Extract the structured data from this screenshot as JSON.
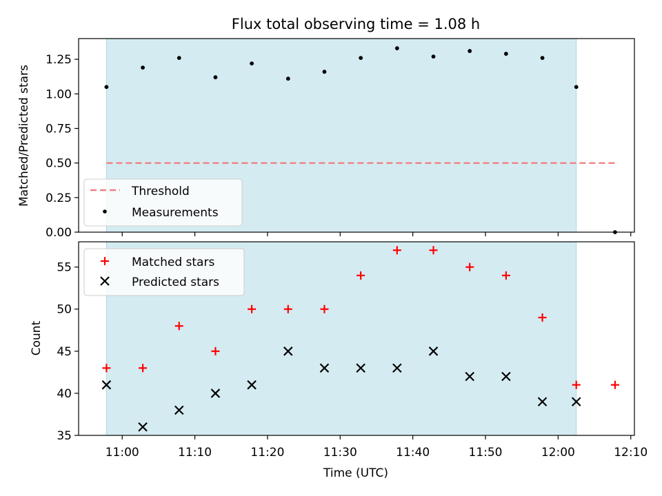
{
  "figure": {
    "title": "Flux total observing time = 1.08 h",
    "xlabel": "Time (UTC)"
  },
  "chart_data": [
    {
      "type": "scatter",
      "ylabel": "Matched/Predicted stars",
      "ylim": [
        0,
        1.4
      ],
      "yticks": [
        "0.00",
        "0.25",
        "0.50",
        "0.75",
        "1.00",
        "1.25"
      ],
      "shaded_interval": [
        "10:57:50",
        "12:02:30"
      ],
      "threshold": {
        "name": "Threshold",
        "value": 0.5,
        "x_range": [
          "10:57:50",
          "12:07:50"
        ],
        "color": "#f08080"
      },
      "legend": {
        "placement": "lower-left",
        "entries": [
          "Threshold",
          "Measurements"
        ]
      },
      "series": [
        {
          "name": "Measurements",
          "color": "#000000",
          "x": [
            "10:57:50",
            "11:02:50",
            "11:07:50",
            "11:12:50",
            "11:17:50",
            "11:22:50",
            "11:27:50",
            "11:32:50",
            "11:37:50",
            "11:42:50",
            "11:47:50",
            "11:52:50",
            "11:57:50",
            "12:02:30",
            "12:07:50"
          ],
          "y": [
            1.05,
            1.19,
            1.26,
            1.12,
            1.22,
            1.11,
            1.16,
            1.26,
            1.33,
            1.27,
            1.31,
            1.29,
            1.26,
            1.05,
            0.0
          ]
        }
      ]
    },
    {
      "type": "scatter",
      "ylabel": "Count",
      "ylim": [
        35,
        58
      ],
      "yticks": [
        "35",
        "40",
        "45",
        "50",
        "55"
      ],
      "xticks": [
        "11:00",
        "11:10",
        "11:20",
        "11:30",
        "11:40",
        "11:50",
        "12:00",
        "12:10"
      ],
      "xlim": [
        "10:54:00",
        "12:10:30"
      ],
      "shaded_interval": [
        "10:57:50",
        "12:02:30"
      ],
      "legend": {
        "placement": "upper-left",
        "entries": [
          "Matched stars",
          "Predicted stars"
        ]
      },
      "series": [
        {
          "name": "Matched stars",
          "marker": "plus",
          "color": "#ff0000",
          "x": [
            "10:57:50",
            "11:02:50",
            "11:07:50",
            "11:12:50",
            "11:17:50",
            "11:22:50",
            "11:27:50",
            "11:32:50",
            "11:37:50",
            "11:42:50",
            "11:47:50",
            "11:52:50",
            "11:57:50",
            "12:02:30",
            "12:07:50"
          ],
          "y": [
            43,
            43,
            48,
            45,
            50,
            50,
            50,
            54,
            57,
            57,
            55,
            54,
            49,
            41,
            41
          ]
        },
        {
          "name": "Predicted stars",
          "marker": "x",
          "color": "#000000",
          "x": [
            "10:57:50",
            "11:02:50",
            "11:07:50",
            "11:12:50",
            "11:17:50",
            "11:22:50",
            "11:27:50",
            "11:32:50",
            "11:37:50",
            "11:42:50",
            "11:47:50",
            "11:52:50",
            "11:57:50",
            "12:02:30"
          ],
          "y": [
            41,
            36,
            38,
            40,
            41,
            45,
            43,
            43,
            43,
            45,
            42,
            42,
            39,
            39
          ]
        }
      ]
    }
  ],
  "colors": {
    "shade": "#d4ebf1",
    "shade_edge": "#aed7e4"
  }
}
